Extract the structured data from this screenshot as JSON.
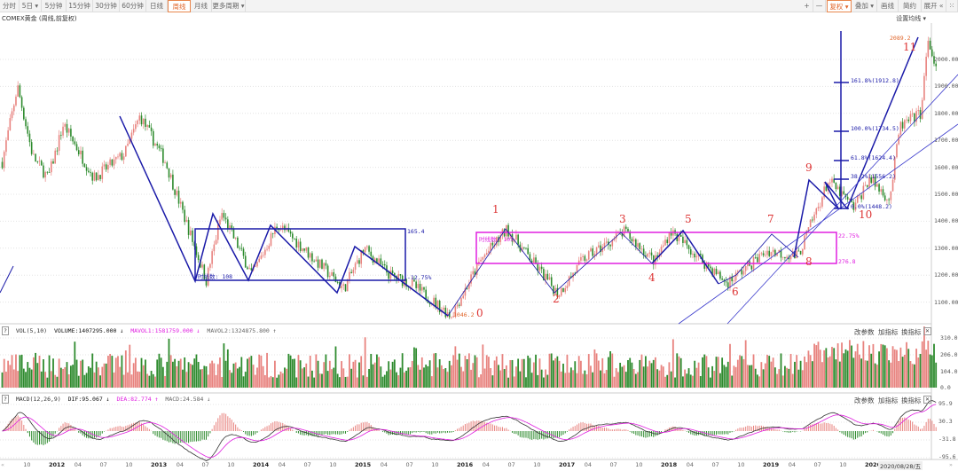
{
  "toolbar": {
    "periods": [
      {
        "label": "分时"
      },
      {
        "label": "5日 ▾"
      },
      {
        "label": "5分钟"
      },
      {
        "label": "15分钟"
      },
      {
        "label": "30分钟"
      },
      {
        "label": "60分钟"
      },
      {
        "label": "日线"
      },
      {
        "label": "周线",
        "active": true
      },
      {
        "label": "月线"
      },
      {
        "label": "更多周期 ▾"
      }
    ],
    "right": {
      "plus": "+",
      "minus": "—",
      "fuquan": "复权 ▾",
      "diejia": "叠加 ▾",
      "huaxian": "画线",
      "jianyue": "简约",
      "zhankai": "展开 «",
      "more": "⁙"
    }
  },
  "title": "COMEX黄金 (周线,前复权)",
  "set_ma": "设置均线 ▾",
  "colors": {
    "up": "#e8837f",
    "down": "#2e8b2e",
    "zig": "#1a1aa8",
    "magenta": "#e020e0",
    "wave": "#d33333",
    "orange": "#e0652a"
  },
  "price_axis": [
    "2000.00",
    "1900.00",
    "1800.00",
    "1700.00",
    "1600.00",
    "1500.00",
    "1400.00",
    "1300.00",
    "1200.00",
    "1100.00"
  ],
  "vol_axis": [
    "310.0",
    "206.0",
    "104.0",
    "0.0"
  ],
  "macd_axis": [
    "95.9",
    "30.3",
    "-31.8",
    "-95.6"
  ],
  "annotations": {
    "box1_top": "165.4",
    "box1_pct": "-12.75%",
    "box1_count": "时线数: 108",
    "box2_count": "时线数: 105",
    "box2_pct": "22.75%",
    "box2_val": "276.8",
    "low": "1046.2",
    "high": "2089.2",
    "fib": [
      "161.8%(1912.8)",
      "100.0%(1734.5)",
      "61.8%(1624.4)",
      "38.2%(1556.2)",
      "0.0%(1448.2)"
    ]
  },
  "waves": [
    "0",
    "1",
    "2",
    "3",
    "4",
    "5",
    "6",
    "7",
    "8",
    "9",
    "10",
    "11"
  ],
  "volume": {
    "help": "?",
    "name": "VOL(5,10)",
    "volume": "VOLUME:1407295.000 ↓",
    "mavol1": "MAVOL1:1581759.000 ↓",
    "mavol2": "MAVOL2:1324875.800 ↑"
  },
  "macd": {
    "help": "?",
    "name": "MACD(12,26,9)",
    "dif": "DIF:95.067 ↓",
    "dea": "DEA:82.774 ↑",
    "macd": "MACD:24.584 ↓"
  },
  "panel_btns": {
    "gaicanshu": "改参数",
    "jiazhibiao": "加指标",
    "huanzhibiao": "换指标",
    "close": "✕"
  },
  "xaxis": {
    "labels": [
      {
        "t": "10",
        "y": 2011.75
      },
      {
        "t": "2012",
        "y": 2012,
        "b": 1
      },
      {
        "t": "04",
        "y": 2012.25
      },
      {
        "t": "07",
        "y": 2012.5
      },
      {
        "t": "10",
        "y": 2012.75
      },
      {
        "t": "2013",
        "y": 2013,
        "b": 1
      },
      {
        "t": "04",
        "y": 2013.25
      },
      {
        "t": "07",
        "y": 2013.5
      },
      {
        "t": "10",
        "y": 2013.75
      },
      {
        "t": "2014",
        "y": 2014,
        "b": 1
      },
      {
        "t": "04",
        "y": 2014.25
      },
      {
        "t": "07",
        "y": 2014.5
      },
      {
        "t": "10",
        "y": 2014.75
      },
      {
        "t": "2015",
        "y": 2015,
        "b": 1
      },
      {
        "t": "04",
        "y": 2015.25
      },
      {
        "t": "07",
        "y": 2015.5
      },
      {
        "t": "10",
        "y": 2015.75
      },
      {
        "t": "2016",
        "y": 2016,
        "b": 1
      },
      {
        "t": "04",
        "y": 2016.25
      },
      {
        "t": "07",
        "y": 2016.5
      },
      {
        "t": "10",
        "y": 2016.75
      },
      {
        "t": "2017",
        "y": 2017,
        "b": 1
      },
      {
        "t": "04",
        "y": 2017.25
      },
      {
        "t": "07",
        "y": 2017.5
      },
      {
        "t": "10",
        "y": 2017.75
      },
      {
        "t": "2018",
        "y": 2018,
        "b": 1
      },
      {
        "t": "04",
        "y": 2018.25
      },
      {
        "t": "07",
        "y": 2018.5
      },
      {
        "t": "10",
        "y": 2018.75
      },
      {
        "t": "2019",
        "y": 2019,
        "b": 1
      },
      {
        "t": "04",
        "y": 2019.25
      },
      {
        "t": "07",
        "y": 2019.5
      },
      {
        "t": "10",
        "y": 2019.75
      },
      {
        "t": "2020",
        "y": 2020,
        "b": 1
      }
    ],
    "current": "2020/08/28/五",
    "scroll_left": "«",
    "scroll_right": "»"
  },
  "chart_data": {
    "type": "candlestick",
    "period": "weekly",
    "ylim": [
      1020,
      2110
    ],
    "price_path": [
      [
        2011.5,
        1620
      ],
      [
        2011.65,
        1900
      ],
      [
        2011.8,
        1640
      ],
      [
        2011.95,
        1560
      ],
      [
        2012.1,
        1760
      ],
      [
        2012.4,
        1560
      ],
      [
        2012.7,
        1650
      ],
      [
        2012.85,
        1790
      ],
      [
        2013.1,
        1620
      ],
      [
        2013.3,
        1400
      ],
      [
        2013.5,
        1180
      ],
      [
        2013.65,
        1430
      ],
      [
        2013.95,
        1200
      ],
      [
        2014.2,
        1390
      ],
      [
        2014.45,
        1300
      ],
      [
        2014.85,
        1150
      ],
      [
        2015.05,
        1300
      ],
      [
        2015.3,
        1200
      ],
      [
        2015.5,
        1170
      ],
      [
        2015.9,
        1050
      ],
      [
        2016.2,
        1260
      ],
      [
        2016.45,
        1370
      ],
      [
        2016.95,
        1130
      ],
      [
        2017.2,
        1260
      ],
      [
        2017.6,
        1360
      ],
      [
        2017.9,
        1250
      ],
      [
        2018.05,
        1365
      ],
      [
        2018.6,
        1170
      ],
      [
        2019.0,
        1290
      ],
      [
        2019.3,
        1270
      ],
      [
        2019.6,
        1550
      ],
      [
        2019.85,
        1450
      ],
      [
        2020.0,
        1560
      ],
      [
        2020.2,
        1480
      ],
      [
        2020.3,
        1750
      ],
      [
        2020.5,
        1800
      ],
      [
        2020.58,
        2070
      ],
      [
        2020.66,
        1950
      ]
    ]
  }
}
